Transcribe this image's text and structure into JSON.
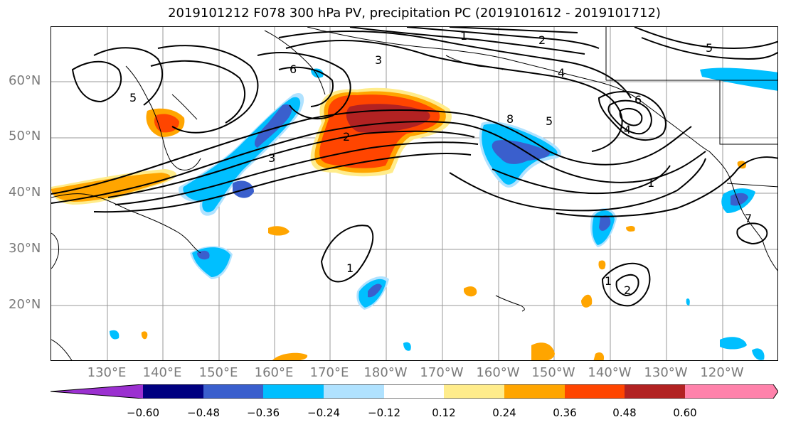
{
  "title": "2019101212 F078 300 hPa PV, precipitation PC (2019101612 - 2019101712)",
  "lat_labels": [
    "60°N",
    "50°N",
    "40°N",
    "30°N",
    "20°N"
  ],
  "lon_labels": [
    "130°E",
    "140°E",
    "150°E",
    "160°E",
    "170°E",
    "180°W",
    "170°W",
    "160°W",
    "150°W",
    "140°W",
    "130°W",
    "120°W"
  ],
  "contour_labels": [
    "1",
    "2",
    "3",
    "4",
    "5",
    "6",
    "7",
    "8"
  ],
  "colorbar": {
    "ticks": [
      "−0.60",
      "−0.48",
      "−0.36",
      "−0.24",
      "−0.12",
      "0.12",
      "0.24",
      "0.36",
      "0.48",
      "0.60"
    ],
    "colors": [
      "#9b30d0",
      "#000080",
      "#3a5fcd",
      "#00bfff",
      "#b0e2ff",
      "#ffffff",
      "#ffec8b",
      "#ffa500",
      "#ff4500",
      "#b22222",
      "#ff82ab"
    ]
  }
}
